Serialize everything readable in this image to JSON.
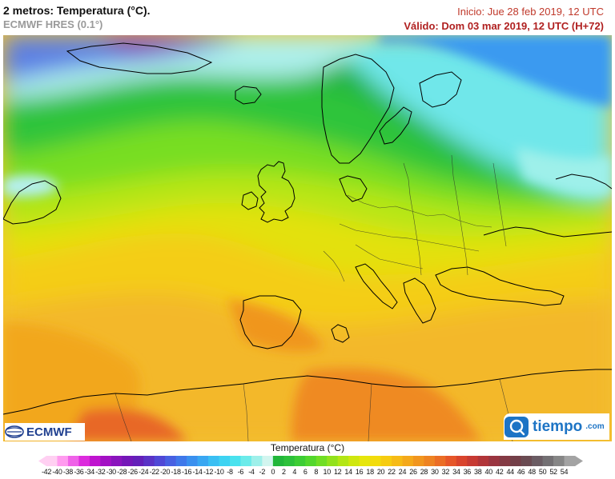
{
  "header": {
    "title": "2 metros: Temperatura (°C).",
    "model": "ECMWF HRES (0.1°)",
    "init": "Inicio: Jue 28 feb 2019, 12 UTC",
    "valid": "Válido: Dom 03 mar 2019, 12 UTC (H+72)"
  },
  "logos": {
    "ecmwf": "ECMWF",
    "tiempo": "tiempo",
    "tiempo_suffix": ".com"
  },
  "legend": {
    "title": "Temperatura (°C)",
    "values": [
      "-42",
      "-40",
      "-38",
      "-36",
      "-34",
      "-32",
      "-30",
      "-28",
      "-26",
      "-24",
      "-22",
      "-20",
      "-18",
      "-16",
      "-14",
      "-12",
      "-10",
      "-8",
      "-6",
      "-4",
      "-2",
      "0",
      "2",
      "4",
      "6",
      "8",
      "10",
      "12",
      "14",
      "16",
      "18",
      "20",
      "22",
      "24",
      "26",
      "28",
      "30",
      "32",
      "34",
      "36",
      "38",
      "40",
      "42",
      "44",
      "46",
      "48",
      "50",
      "52",
      "54"
    ],
    "colors": [
      "#ffd0f2",
      "#ff9bef",
      "#ef62e8",
      "#dc2bdd",
      "#bf14cf",
      "#a311c4",
      "#8a14bd",
      "#7417b8",
      "#6420b9",
      "#5a33c6",
      "#4f48d6",
      "#4760e2",
      "#3f78ea",
      "#3a90ef",
      "#39a7f2",
      "#3abff3",
      "#3dd3f2",
      "#49e2ee",
      "#6bebea",
      "#9ef0ea",
      "#d2f5ef",
      "#21b63a",
      "#2cc13a",
      "#3ccd34",
      "#52d72c",
      "#70de24",
      "#92e21c",
      "#b3e615",
      "#cfe70f",
      "#e6e60c",
      "#f2dc0c",
      "#f6cc10",
      "#f6bb16",
      "#f4a91b",
      "#f1961f",
      "#ee8322",
      "#eb6d25",
      "#e65629",
      "#d9442d",
      "#c73a33",
      "#b13539",
      "#9a3540",
      "#843a44",
      "#733f48",
      "#6a4b52",
      "#6a5c63",
      "#737073",
      "#868686",
      "#a3a3a3"
    ]
  }
}
